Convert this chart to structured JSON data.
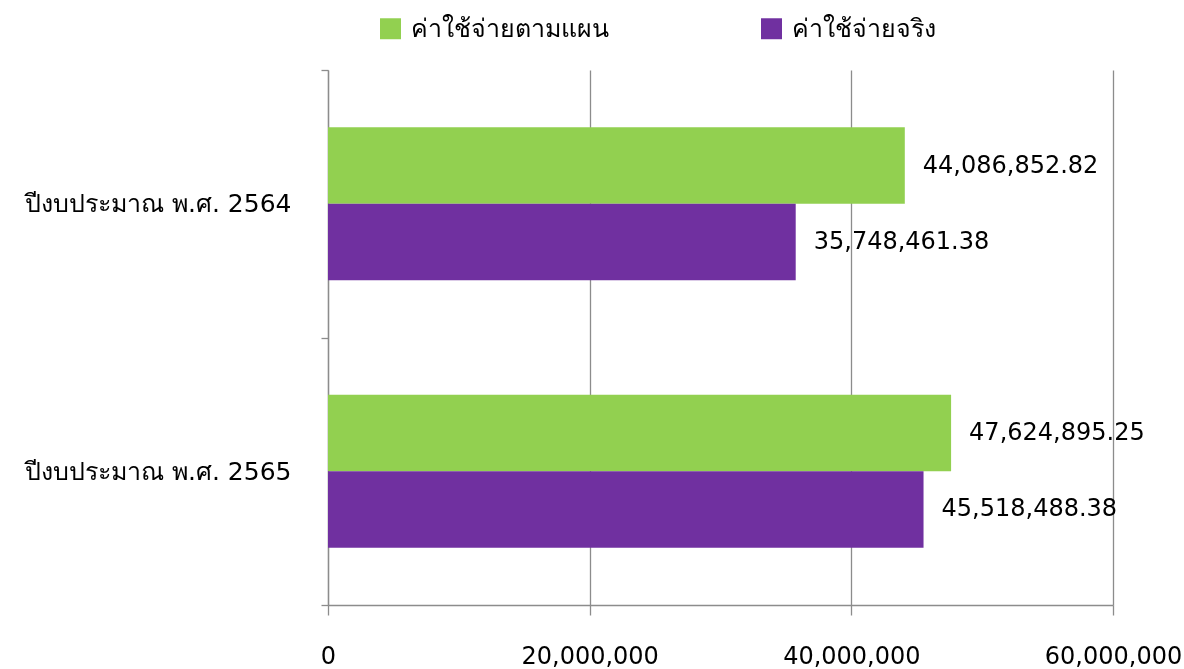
{
  "chart_data": {
    "type": "bar",
    "orientation": "horizontal",
    "categories": [
      "ปีงบประมาณ พ.ศ. 2564",
      "ปีงบประมาณ พ.ศ. 2565"
    ],
    "series": [
      {
        "name": "ค่าใช้จ่ายตามแผน",
        "color": "#92d050",
        "values": [
          44086852.82,
          47624895.25
        ],
        "value_labels": [
          "44,086,852.82",
          "47,624,895.25"
        ]
      },
      {
        "name": "ค่าใช้จ่ายจริง",
        "color": "#7030a0",
        "values": [
          35748461.38,
          45518488.38
        ],
        "value_labels": [
          "35,748,461.38",
          "45,518,488.38"
        ]
      }
    ],
    "xlim": [
      0,
      60000000
    ],
    "xticks": [
      0,
      {
        "value": 20000000,
        "label": "20,000,000"
      },
      {
        "value": 40000000,
        "label": "40,000,000"
      },
      {
        "value": 60000000,
        "label": "60,000,000"
      }
    ],
    "grid": "x",
    "legend": "top"
  }
}
